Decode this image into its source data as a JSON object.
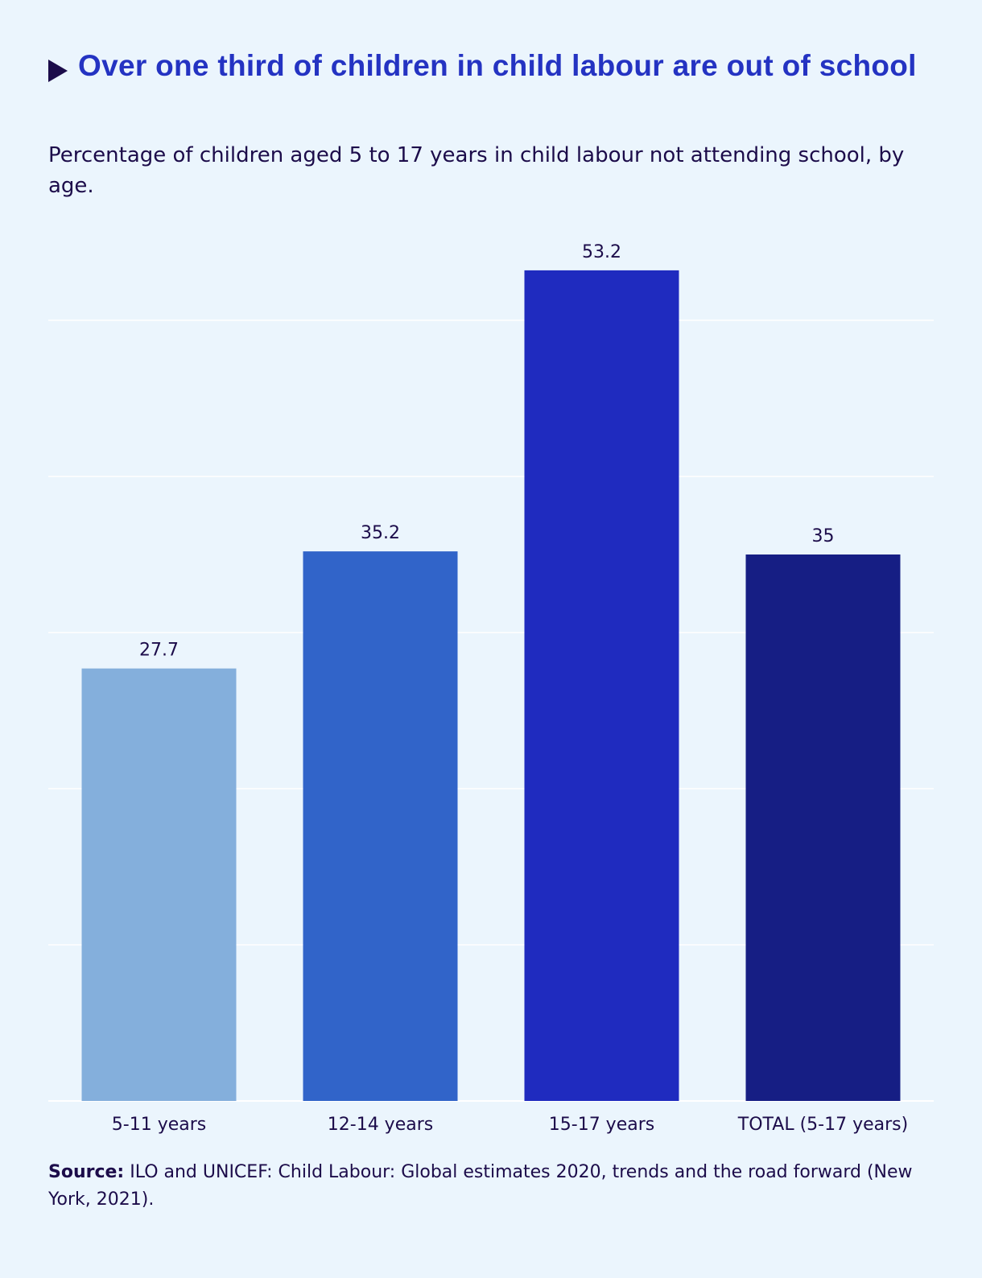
{
  "title": "Over one third of children in child labour are out of school",
  "subtitle": "Percentage of children aged 5 to 17 years in child labour not attending school, by age.",
  "source": {
    "label": "Source:",
    "text": " ILO and UNICEF: Child Labour: Global estimates 2020, trends and the road forward (New York, 2021)."
  },
  "colors": {
    "background": "#ebf5fd",
    "title": "#2433c2",
    "text": "#1c0c4a",
    "gridline": "#ffffff"
  },
  "chart_data": {
    "type": "bar",
    "title": "Over one third of children in child labour are out of school",
    "categories": [
      "5-11 years",
      "12-14 years",
      "15-17 years",
      "TOTAL (5-17 years)"
    ],
    "values": [
      27.7,
      35.2,
      53.2,
      35
    ],
    "value_labels": [
      "27.7",
      "35.2",
      "53.2",
      "35"
    ],
    "bar_colors": [
      "#84afdc",
      "#3164c9",
      "#1f2bbf",
      "#161e84"
    ],
    "xlabel": "",
    "ylabel": "",
    "ylim": [
      0,
      50
    ],
    "gridlines": [
      0,
      10,
      20,
      30,
      40,
      50
    ],
    "grid": true,
    "legend": "none"
  }
}
